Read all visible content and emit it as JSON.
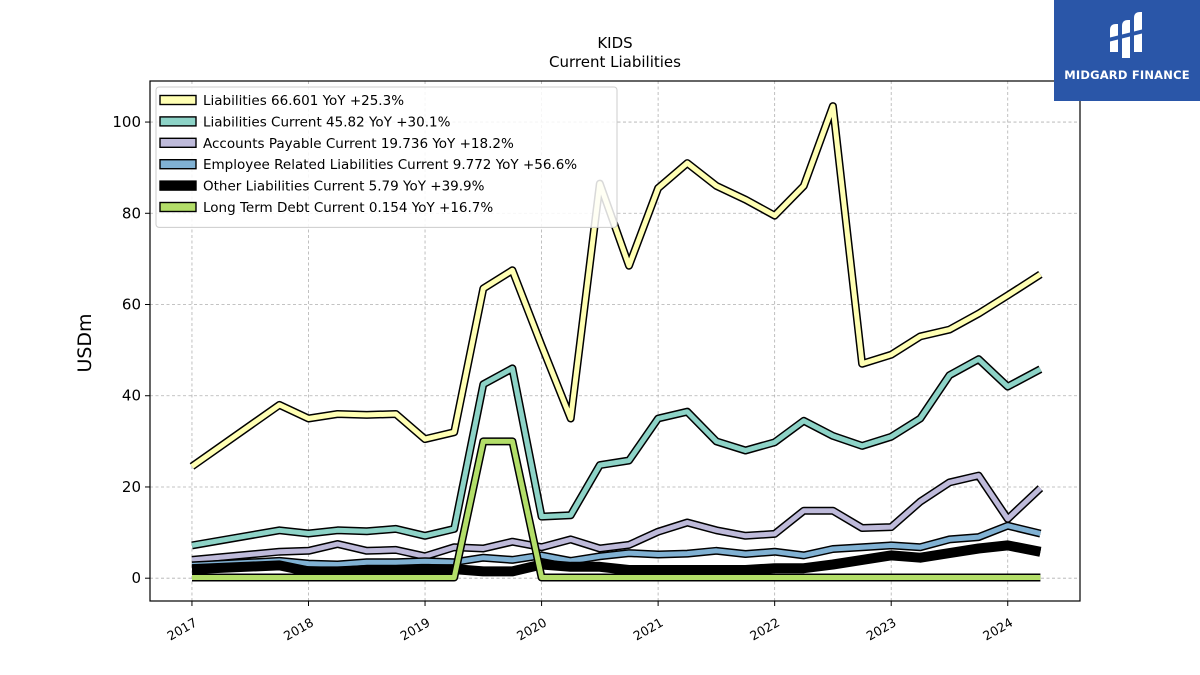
{
  "chart_data": {
    "type": "line",
    "title": "KIDS",
    "subtitle": "Current  Liabilities",
    "ylabel": "USDm",
    "xlabel": "",
    "ylim": [
      -5,
      109
    ],
    "xlim": [
      2016.64,
      2024.62
    ],
    "yticks": [
      0,
      20,
      40,
      60,
      80,
      100
    ],
    "xticks": [
      2017,
      2018,
      2019,
      2020,
      2021,
      2022,
      2023,
      2024
    ],
    "xtick_labels": [
      "2017",
      "2018",
      "2019",
      "2020",
      "2021",
      "2022",
      "2023",
      "2024"
    ],
    "grid": true,
    "legend_position": "top-left",
    "x": [
      2017.0,
      2017.75,
      2018.0,
      2018.25,
      2018.5,
      2018.75,
      2019.0,
      2019.25,
      2019.5,
      2019.75,
      2020.0,
      2020.25,
      2020.5,
      2020.75,
      2021.0,
      2021.25,
      2021.5,
      2021.75,
      2022.0,
      2022.25,
      2022.5,
      2022.75,
      2023.0,
      2023.25,
      2023.5,
      2023.75,
      2024.0,
      2024.28
    ],
    "series": [
      {
        "name": "Liabilities",
        "legend": "Liabilities  66.601 YoY +25.3%",
        "color": "#ffffb3",
        "width": 5,
        "values": [
          24.5,
          38.0,
          35.0,
          36.0,
          35.8,
          36.0,
          30.5,
          32.0,
          63.5,
          67.5,
          51.0,
          35.0,
          86.5,
          68.5,
          85.5,
          91.0,
          86.0,
          83.0,
          79.5,
          86.0,
          103.5,
          47.0,
          49.0,
          53.0,
          54.5,
          58.0,
          62.0,
          66.601
        ]
      },
      {
        "name": "Liabilities Current",
        "legend": "Liabilities Current  45.82 YoY +30.1%",
        "color": "#8dd3c7",
        "width": 5,
        "values": [
          7.2,
          10.5,
          9.8,
          10.5,
          10.3,
          10.8,
          9.3,
          10.8,
          42.5,
          46.0,
          13.5,
          13.8,
          24.8,
          25.8,
          35.0,
          36.5,
          30.0,
          28.0,
          29.8,
          34.5,
          31.2,
          29.0,
          31.0,
          35.0,
          44.5,
          48.0,
          42.0,
          45.82
        ]
      },
      {
        "name": "Accounts Payable Current",
        "legend": "Accounts Payable Current  19.736 YoY +18.2%",
        "color": "#bebada",
        "width": 5,
        "values": [
          4.0,
          5.8,
          6.0,
          7.5,
          6.0,
          6.2,
          4.8,
          6.8,
          6.5,
          8.0,
          6.8,
          8.5,
          6.5,
          7.3,
          10.2,
          12.2,
          10.5,
          9.3,
          9.7,
          14.8,
          14.8,
          11.0,
          11.2,
          16.8,
          21.0,
          22.5,
          13.0,
          19.736
        ]
      },
      {
        "name": "Employee Related Liabilities Current",
        "legend": "Employee Related Liabilities Current  9.772 YoY +56.6%",
        "color": "#80b1d3",
        "width": 5,
        "values": [
          2.8,
          3.8,
          3.2,
          3.0,
          3.5,
          3.5,
          3.7,
          3.5,
          4.5,
          4.0,
          5.0,
          3.8,
          4.8,
          5.5,
          5.2,
          5.4,
          6.0,
          5.3,
          5.8,
          5.0,
          6.4,
          6.8,
          7.2,
          6.8,
          8.5,
          9.0,
          11.5,
          9.772
        ]
      },
      {
        "name": "Other Liabilities Current",
        "legend": "Other Liabilities Current  5.79 YoY +39.9%",
        "color": "#000000",
        "width": 7,
        "values": [
          2.0,
          2.8,
          1.5,
          1.5,
          1.8,
          1.8,
          2.0,
          2.0,
          1.5,
          1.5,
          3.0,
          2.5,
          2.5,
          1.8,
          1.8,
          1.8,
          1.8,
          1.8,
          2.2,
          2.2,
          3.0,
          4.0,
          5.0,
          4.5,
          5.5,
          6.5,
          7.2,
          5.79
        ]
      },
      {
        "name": "Long Term Debt Current",
        "legend": "Long Term Debt Current  0.154 YoY +16.7%",
        "color": "#b3de69",
        "width": 5,
        "values": [
          0.15,
          0.15,
          0.15,
          0.15,
          0.15,
          0.15,
          0.15,
          0.15,
          30.0,
          30.0,
          0.15,
          0.15,
          0.15,
          0.15,
          0.15,
          0.15,
          0.15,
          0.15,
          0.15,
          0.15,
          0.15,
          0.15,
          0.15,
          0.15,
          0.15,
          0.15,
          0.15,
          0.154
        ]
      }
    ]
  },
  "logo": {
    "text": "MIDGARD FINANCE",
    "background": "#2a56a8",
    "icon": "midgard-logo-icon"
  }
}
